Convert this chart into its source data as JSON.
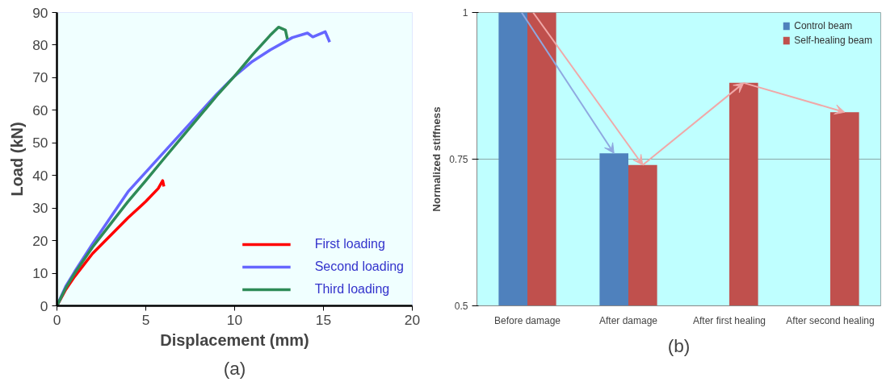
{
  "chart_data": [
    {
      "type": "line",
      "xlabel": "Displacement (mm)",
      "ylabel": "Load (kN)",
      "xlim": [
        0,
        20
      ],
      "ylim": [
        0,
        90
      ],
      "xticks": [
        0,
        5,
        10,
        15,
        20
      ],
      "yticks": [
        0,
        10,
        20,
        30,
        40,
        50,
        60,
        70,
        80,
        90
      ],
      "grid": false,
      "legend": "bottom right",
      "annotations": [
        "(a)"
      ],
      "series": [
        {
          "name": "First loading",
          "color": "#ff0000",
          "x": [
            0,
            0.5,
            1,
            2,
            3,
            4,
            5,
            5.7,
            5.95,
            6.02
          ],
          "values": [
            0,
            5,
            9,
            16,
            21.5,
            27,
            32,
            36,
            38.4,
            36.6
          ]
        },
        {
          "name": "Second loading",
          "color": "#6666ff",
          "x": [
            0,
            0.5,
            1,
            2,
            3,
            4,
            5,
            6,
            7,
            8,
            9,
            10,
            11,
            12,
            13.25,
            14.1,
            14.4,
            15.1,
            15.35
          ],
          "values": [
            0,
            6,
            10.5,
            19,
            27,
            35,
            41,
            47,
            53,
            59,
            65,
            70.5,
            75,
            78.5,
            82.3,
            83.7,
            82.5,
            84.1,
            80.9
          ]
        },
        {
          "name": "Third loading",
          "color": "#2e8b57",
          "x": [
            0,
            0.5,
            1,
            2,
            3,
            4,
            5,
            6,
            7,
            8,
            9,
            10,
            11,
            12,
            12.47,
            12.86,
            12.97
          ],
          "values": [
            0,
            5.5,
            10,
            18,
            25,
            32,
            38.4,
            45,
            51.5,
            58,
            64.5,
            70.5,
            77,
            83,
            85.5,
            84.6,
            81.8
          ]
        }
      ]
    },
    {
      "type": "bar",
      "ylabel": "Normalized stiffness",
      "categories": [
        "Before damage",
        "After damage",
        "After first healing",
        "After second healing"
      ],
      "ylim": [
        0.5,
        1
      ],
      "yticks": [
        0.5,
        0.75,
        1
      ],
      "grid": "y",
      "legend": "top right",
      "annotations": [
        "(b)"
      ],
      "series": [
        {
          "name": "Control beam",
          "color": "#4f81bd",
          "values": [
            1,
            0.76,
            null,
            null
          ]
        },
        {
          "name": "Self-healing beam",
          "color": "#c0504d",
          "values": [
            1,
            0.74,
            0.88,
            0.83
          ]
        }
      ]
    }
  ]
}
